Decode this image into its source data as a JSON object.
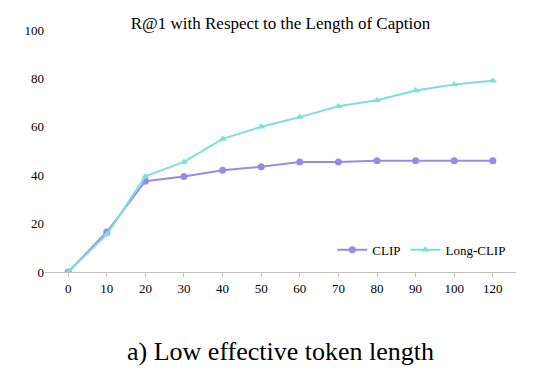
{
  "chart_data": {
    "type": "line",
    "title": "R@1 with Respect to the Length of Caption",
    "annotations": [
      "a) Low effective token length"
    ],
    "categories": [
      "0",
      "10",
      "20",
      "30",
      "40",
      "50",
      "60",
      "70",
      "80",
      "90",
      "100",
      "120"
    ],
    "series": [
      {
        "name": "CLIP",
        "color": "#9a8ae6",
        "marker": "circle",
        "values": [
          0,
          16.5,
          37.5,
          39.5,
          42,
          43.5,
          45.5,
          45.5,
          46,
          46,
          46,
          46
        ]
      },
      {
        "name": "Long-CLIP",
        "color": "#7edfd6",
        "marker": "triangle-up",
        "values": [
          0,
          15.5,
          39.5,
          45.5,
          55,
          60,
          64,
          68.5,
          71,
          75,
          77.5,
          79
        ]
      }
    ],
    "ylim": [
      0,
      100
    ],
    "yticks": [
      0,
      20,
      40,
      60,
      80,
      100
    ],
    "grid": false,
    "legend": "lower right"
  }
}
